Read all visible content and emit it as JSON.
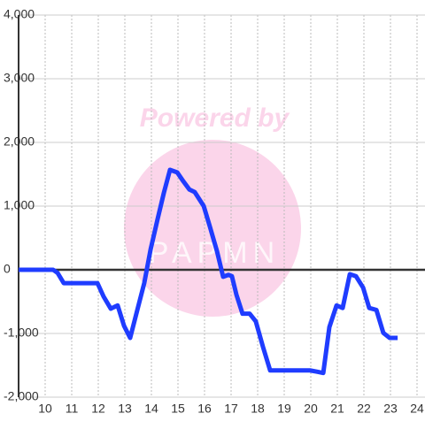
{
  "chart_data": {
    "type": "line",
    "watermark": "Powered by",
    "watermark_logo": "PAPMN",
    "x": [
      9,
      10.3,
      10.47,
      10.7,
      11.97,
      12.2,
      12.47,
      12.73,
      12.97,
      13.2,
      13.47,
      13.73,
      13.97,
      14.23,
      14.47,
      14.7,
      14.97,
      15.2,
      15.43,
      15.63,
      15.97,
      16.2,
      16.47,
      16.7,
      16.9,
      17.03,
      17.2,
      17.43,
      17.7,
      17.93,
      18.2,
      18.47,
      19.97,
      20.23,
      20.47,
      20.7,
      20.97,
      21.2,
      21.47,
      21.7,
      21.97,
      22.2,
      22.47,
      22.73,
      22.97,
      23.27
    ],
    "series": [
      {
        "color": "#1f3cff",
        "values": [
          0,
          0,
          -50,
          -210,
          -210,
          -420,
          -610,
          -560,
          -880,
          -1070,
          -630,
          -210,
          320,
          790,
          1210,
          1570,
          1530,
          1390,
          1260,
          1220,
          1000,
          680,
          290,
          -110,
          -80,
          -100,
          -390,
          -690,
          -690,
          -810,
          -1210,
          -1580,
          -1580,
          -1600,
          -1620,
          -900,
          -560,
          -600,
          -70,
          -100,
          -280,
          -600,
          -630,
          -990,
          -1070,
          -1070
        ]
      }
    ],
    "xlim": [
      9,
      24.3
    ],
    "xticks": [
      10,
      11,
      12,
      13,
      14,
      15,
      16,
      17,
      18,
      19,
      20,
      21,
      22,
      23,
      24
    ],
    "ylim": [
      -2000,
      4000
    ],
    "yticks": [
      {
        "value": -2000,
        "label": "-2,000"
      },
      {
        "value": -1000,
        "label": "-1,000"
      },
      0,
      {
        "value": 1000,
        "label": "1,000"
      },
      {
        "value": 2000,
        "label": "2,000"
      },
      {
        "value": 3000,
        "label": "3,000"
      },
      {
        "value": 4000,
        "label": "4,000"
      }
    ],
    "grid": true
  }
}
